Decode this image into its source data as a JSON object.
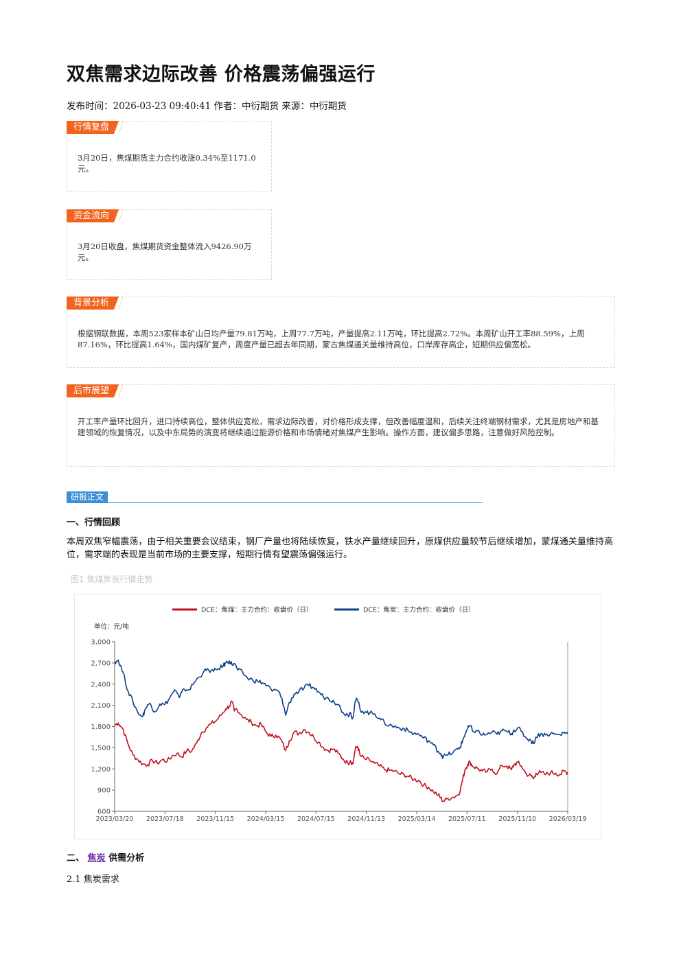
{
  "article": {
    "title": "双焦需求边际改善 价格震荡偏强运行",
    "meta": "发布时间：2026-03-23 09:40:41 作者：中衍期货 来源：中衍期货"
  },
  "boxes": {
    "market_review": {
      "tag": "行情复盘",
      "text": "3月20日，焦煤期货主力合约收涨0.34%至1171.0元。"
    },
    "fund_flow": {
      "tag": "资金流向",
      "text": "3月20日收盘，焦煤期货资金整体流入9426.90万元。"
    },
    "background": {
      "tag": "背景分析",
      "text": "根据钢联数据，本周523家样本矿山日均产量79.81万吨，上周77.7万吨，产量提高2.11万吨，环比提高2.72%。本周矿山开工率88.59%，上周87.16%，环比提高1.64%，国内煤矿复产，周度产量已超去年同期，蒙古焦煤通关量维持高位，口岸库存高企，短期供应偏宽松。"
    },
    "outlook": {
      "tag": "后市展望",
      "text": "开工率产量环比回升，进口持续高位，整体供应宽松，需求边际改善，对价格形成支撑，但改善幅度温和，后续关注终端钢材需求，尤其是房地产和基建领域的恢复情况，以及中东局势的演变将继续通过能源价格和市场情绪对焦煤产生影响。操作方面，建议偏多思路，注意做好风险控制。"
    }
  },
  "report": {
    "section_label": "研报正文",
    "h1": "一、行情回顾",
    "p1": "本周双焦窄幅震荡，由于相关重要会议结束，钢厂产量也将陆续恢复，铁水产量继续回升，原煤供应量较节后继续增加，蒙煤通关量维持高位，需求端的表现是当前市场的主要支撑，短期行情有望震荡偏强运行。",
    "fig_caption": "图1 焦煤焦炭行情走势",
    "h2_prefix": "二、",
    "h2_link": "焦炭",
    "h2_suffix": "供需分析",
    "sub1": "2.1 焦炭需求"
  },
  "chart_data": {
    "type": "line",
    "unit_label": "单位：元/吨",
    "ylim": [
      600,
      3000
    ],
    "y_ticks": [
      "3,000",
      "2,700",
      "2,400",
      "2,100",
      "1,800",
      "1,500",
      "1,200",
      "900",
      "600"
    ],
    "x_ticks": [
      "2023/03/20",
      "2023/07/18",
      "2023/11/15",
      "2024/03/15",
      "2024/07/15",
      "2024/11/13",
      "2025/03/14",
      "2025/07/11",
      "2025/11/10",
      "2026/03/19"
    ],
    "colors": {
      "coking_coal": "#c0101a",
      "coke": "#0b3f8a"
    },
    "series": [
      {
        "name": "DCE：焦煤：主力合约：收盘价（日）",
        "points": [
          [
            0,
            1820
          ],
          [
            3,
            1850
          ],
          [
            7,
            1760
          ],
          [
            11,
            1550
          ],
          [
            15,
            1400
          ],
          [
            19,
            1330
          ],
          [
            23,
            1270
          ],
          [
            27,
            1260
          ],
          [
            31,
            1320
          ],
          [
            35,
            1280
          ],
          [
            39,
            1330
          ],
          [
            43,
            1310
          ],
          [
            47,
            1380
          ],
          [
            51,
            1420
          ],
          [
            55,
            1370
          ],
          [
            59,
            1460
          ],
          [
            63,
            1450
          ],
          [
            67,
            1560
          ],
          [
            71,
            1710
          ],
          [
            75,
            1780
          ],
          [
            79,
            1840
          ],
          [
            83,
            1880
          ],
          [
            87,
            1960
          ],
          [
            91,
            2050
          ],
          [
            94,
            2090
          ],
          [
            96,
            2150
          ],
          [
            98,
            2020
          ],
          [
            100,
            2050
          ],
          [
            104,
            1960
          ],
          [
            108,
            1900
          ],
          [
            112,
            1860
          ],
          [
            116,
            1810
          ],
          [
            120,
            1830
          ],
          [
            124,
            1720
          ],
          [
            128,
            1660
          ],
          [
            132,
            1680
          ],
          [
            136,
            1620
          ],
          [
            140,
            1460
          ],
          [
            143,
            1600
          ],
          [
            147,
            1720
          ],
          [
            151,
            1700
          ],
          [
            155,
            1760
          ],
          [
            159,
            1720
          ],
          [
            163,
            1650
          ],
          [
            167,
            1580
          ],
          [
            171,
            1500
          ],
          [
            175,
            1460
          ],
          [
            179,
            1480
          ],
          [
            183,
            1420
          ],
          [
            187,
            1340
          ],
          [
            191,
            1280
          ],
          [
            193,
            1320
          ],
          [
            195,
            1270
          ],
          [
            197,
            1480
          ],
          [
            199,
            1520
          ],
          [
            201,
            1390
          ],
          [
            205,
            1340
          ],
          [
            209,
            1320
          ],
          [
            213,
            1280
          ],
          [
            217,
            1240
          ],
          [
            221,
            1190
          ],
          [
            225,
            1180
          ],
          [
            229,
            1170
          ],
          [
            233,
            1130
          ],
          [
            237,
            1120
          ],
          [
            241,
            1090
          ],
          [
            245,
            1050
          ],
          [
            249,
            1040
          ],
          [
            253,
            970
          ],
          [
            257,
            940
          ],
          [
            261,
            880
          ],
          [
            265,
            830
          ],
          [
            267,
            790
          ],
          [
            269,
            740
          ],
          [
            273,
            780
          ],
          [
            277,
            800
          ],
          [
            281,
            830
          ],
          [
            283,
            900
          ],
          [
            285,
            1050
          ],
          [
            287,
            1200
          ],
          [
            289,
            1260
          ],
          [
            291,
            1300
          ],
          [
            293,
            1240
          ],
          [
            297,
            1210
          ],
          [
            301,
            1170
          ],
          [
            305,
            1160
          ],
          [
            309,
            1200
          ],
          [
            313,
            1130
          ],
          [
            317,
            1250
          ],
          [
            321,
            1240
          ],
          [
            325,
            1190
          ],
          [
            327,
            1260
          ],
          [
            330,
            1290
          ],
          [
            333,
            1240
          ],
          [
            337,
            1130
          ],
          [
            341,
            1100
          ],
          [
            343,
            1060
          ],
          [
            345,
            1140
          ],
          [
            349,
            1150
          ],
          [
            353,
            1120
          ],
          [
            357,
            1150
          ],
          [
            361,
            1140
          ],
          [
            365,
            1120
          ],
          [
            368,
            1170
          ],
          [
            371,
            1150
          ]
        ]
      },
      {
        "name": "DCE：焦炭：主力合约：收盘价（日）",
        "points": [
          [
            0,
            2720
          ],
          [
            3,
            2740
          ],
          [
            7,
            2560
          ],
          [
            11,
            2300
          ],
          [
            15,
            2150
          ],
          [
            19,
            2000
          ],
          [
            23,
            1940
          ],
          [
            25,
            2050
          ],
          [
            29,
            2130
          ],
          [
            33,
            2010
          ],
          [
            37,
            2120
          ],
          [
            41,
            2110
          ],
          [
            45,
            2200
          ],
          [
            49,
            2320
          ],
          [
            53,
            2210
          ],
          [
            57,
            2330
          ],
          [
            61,
            2320
          ],
          [
            65,
            2420
          ],
          [
            69,
            2500
          ],
          [
            73,
            2580
          ],
          [
            77,
            2600
          ],
          [
            81,
            2580
          ],
          [
            85,
            2620
          ],
          [
            89,
            2660
          ],
          [
            91,
            2700
          ],
          [
            94,
            2730
          ],
          [
            96,
            2680
          ],
          [
            98,
            2690
          ],
          [
            101,
            2600
          ],
          [
            105,
            2560
          ],
          [
            109,
            2480
          ],
          [
            113,
            2460
          ],
          [
            117,
            2440
          ],
          [
            121,
            2420
          ],
          [
            125,
            2380
          ],
          [
            129,
            2300
          ],
          [
            133,
            2320
          ],
          [
            137,
            2200
          ],
          [
            140,
            1960
          ],
          [
            143,
            2140
          ],
          [
            147,
            2260
          ],
          [
            151,
            2300
          ],
          [
            155,
            2340
          ],
          [
            159,
            2380
          ],
          [
            163,
            2350
          ],
          [
            167,
            2290
          ],
          [
            171,
            2220
          ],
          [
            175,
            2200
          ],
          [
            179,
            2170
          ],
          [
            183,
            2110
          ],
          [
            187,
            2000
          ],
          [
            191,
            1960
          ],
          [
            193,
            2000
          ],
          [
            195,
            1920
          ],
          [
            197,
            2160
          ],
          [
            199,
            2180
          ],
          [
            201,
            2040
          ],
          [
            205,
            2010
          ],
          [
            209,
            1990
          ],
          [
            213,
            1980
          ],
          [
            217,
            1920
          ],
          [
            221,
            1850
          ],
          [
            225,
            1820
          ],
          [
            229,
            1800
          ],
          [
            233,
            1780
          ],
          [
            237,
            1770
          ],
          [
            241,
            1730
          ],
          [
            245,
            1700
          ],
          [
            249,
            1690
          ],
          [
            253,
            1640
          ],
          [
            257,
            1600
          ],
          [
            261,
            1540
          ],
          [
            265,
            1450
          ],
          [
            267,
            1420
          ],
          [
            269,
            1370
          ],
          [
            273,
            1400
          ],
          [
            277,
            1430
          ],
          [
            281,
            1480
          ],
          [
            283,
            1510
          ],
          [
            285,
            1600
          ],
          [
            287,
            1700
          ],
          [
            289,
            1770
          ],
          [
            291,
            1810
          ],
          [
            293,
            1740
          ],
          [
            297,
            1740
          ],
          [
            301,
            1680
          ],
          [
            305,
            1690
          ],
          [
            309,
            1720
          ],
          [
            313,
            1690
          ],
          [
            317,
            1740
          ],
          [
            321,
            1730
          ],
          [
            325,
            1700
          ],
          [
            327,
            1750
          ],
          [
            330,
            1780
          ],
          [
            333,
            1730
          ],
          [
            337,
            1640
          ],
          [
            341,
            1600
          ],
          [
            343,
            1560
          ],
          [
            345,
            1650
          ],
          [
            349,
            1700
          ],
          [
            353,
            1680
          ],
          [
            357,
            1700
          ],
          [
            361,
            1690
          ],
          [
            365,
            1680
          ],
          [
            368,
            1720
          ],
          [
            371,
            1700
          ]
        ]
      }
    ]
  }
}
